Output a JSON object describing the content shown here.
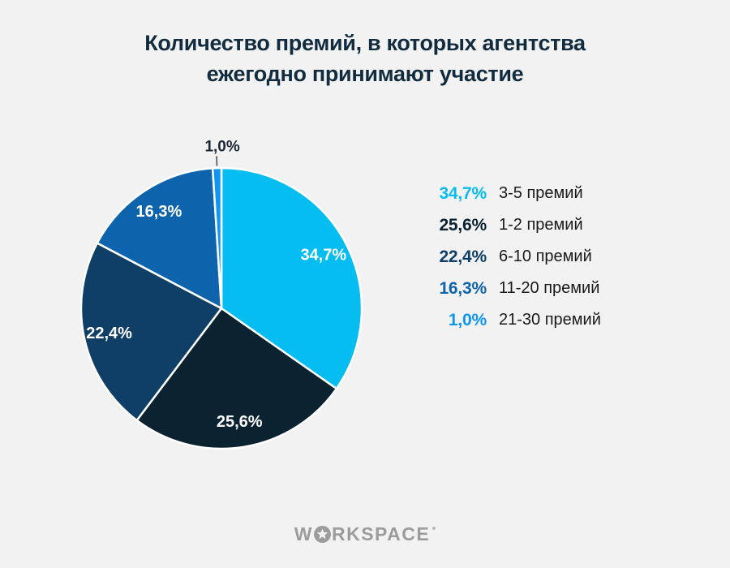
{
  "background_color": "#f2f2f2",
  "title": {
    "line1": "Количество премий, в которых агентства",
    "line2": "ежегодно принимают участие",
    "color": "#112b3f"
  },
  "chart_data": {
    "type": "pie",
    "title": "Количество премий, в которых агентства ежегодно принимают участие",
    "unit": "%",
    "direction": "clockwise",
    "start_angle_deg": 0,
    "separator_color": "#ffffff",
    "inside_label_color": "#ffffff",
    "outside_label_color": "#1b2733",
    "outside_tick_color": "#3a4652",
    "legend_position": "right",
    "legend_text_color": "#1a1a1a",
    "slices": [
      {
        "label": "3-5 премий",
        "value": 34.7,
        "display": "34,7%",
        "color": "#06bdf2"
      },
      {
        "label": "1-2 премий",
        "value": 25.6,
        "display": "25,6%",
        "color": "#0b2231"
      },
      {
        "label": "6-10 премий",
        "value": 22.4,
        "display": "22,4%",
        "color": "#0f3e66"
      },
      {
        "label": "11-20 премий",
        "value": 16.3,
        "display": "16,3%",
        "color": "#0e64ac"
      },
      {
        "label": "21-30 премий",
        "value": 1.0,
        "display": "1,0%",
        "color": "#0e96f2"
      }
    ]
  },
  "footer": {
    "brand": "WORKSPACE",
    "brand_part1": "W",
    "brand_part2": "RKSPACE",
    "color": "#9c9c9c",
    "star_icon": "star-in-circle"
  }
}
